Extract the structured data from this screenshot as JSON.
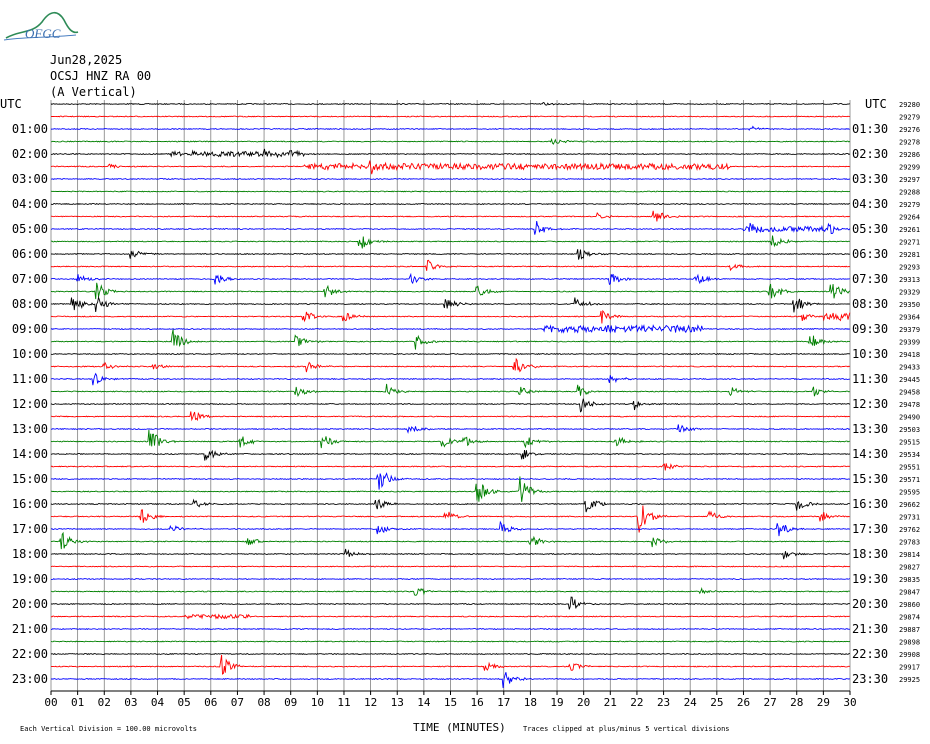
{
  "header": {
    "date": "Jun28,2025",
    "station": "OCSJ HNZ RA 00",
    "component": "(A Vertical)",
    "logo_text": "OFGC"
  },
  "footer": {
    "scale_note": "Each Vertical Division =  100.00 microvolts",
    "clip_note": "Traces clipped at plus/minus 5 vertical divisions"
  },
  "chart_data": {
    "type": "seismogram",
    "xlabel": "TIME (MINUTES)",
    "xlim": [
      0,
      30
    ],
    "x_ticks": [
      "00",
      "01",
      "02",
      "03",
      "04",
      "05",
      "06",
      "07",
      "08",
      "09",
      "10",
      "11",
      "12",
      "13",
      "14",
      "15",
      "16",
      "17",
      "18",
      "19",
      "20",
      "21",
      "22",
      "23",
      "24",
      "25",
      "26",
      "27",
      "28",
      "29",
      "30"
    ],
    "left_axis_title": "UTC",
    "right_axis_title": "UTC",
    "left_labels": [
      "01:00",
      "02:00",
      "03:00",
      "04:00",
      "05:00",
      "06:00",
      "07:00",
      "08:00",
      "09:00",
      "10:00",
      "11:00",
      "12:00",
      "13:00",
      "14:00",
      "15:00",
      "16:00",
      "17:00",
      "18:00",
      "19:00",
      "20:00",
      "21:00",
      "22:00",
      "23:00"
    ],
    "right_labels": [
      "01:30",
      "02:30",
      "03:30",
      "04:30",
      "05:30",
      "06:30",
      "07:30",
      "08:30",
      "09:30",
      "10:30",
      "11:30",
      "12:30",
      "13:30",
      "14:30",
      "15:30",
      "16:30",
      "17:30",
      "18:30",
      "19:30",
      "20:30",
      "21:30",
      "22:30",
      "23:30"
    ],
    "trace_colors": [
      "#000000",
      "#ff0000",
      "#0000ff",
      "#008000"
    ],
    "grid_color": "#808080",
    "trace_offsets": [
      "29280",
      "29279",
      "29276",
      "29278",
      "29286",
      "29299",
      "29297",
      "29288",
      "29279",
      "29264",
      "29261",
      "29271",
      "29281",
      "29293",
      "29313",
      "29329",
      "29350",
      "29364",
      "29379",
      "29399",
      "29418",
      "29433",
      "29445",
      "29458",
      "29478",
      "29490",
      "29503",
      "29515",
      "29534",
      "29551",
      "29571",
      "29595",
      "29662",
      "29731",
      "29762",
      "29783",
      "29814",
      "29827",
      "29835",
      "29847",
      "29860",
      "29874",
      "29887",
      "29898",
      "29908",
      "29917",
      "29925"
    ],
    "top_offset_prefix": "29",
    "events": [
      {
        "trace": 0,
        "minute": 18.5,
        "amp": 2
      },
      {
        "trace": 2,
        "minute": 26.2,
        "amp": 4
      },
      {
        "trace": 3,
        "minute": 18.8,
        "amp": 5
      },
      {
        "trace": 4,
        "minute": 5.0,
        "amp": 3
      },
      {
        "trace": 4,
        "minute": 8.0,
        "amp": 6
      },
      {
        "trace": 4,
        "minute": 9.0,
        "amp": 3
      },
      {
        "trace": 5,
        "minute": 2.2,
        "amp": 3
      },
      {
        "trace": 5,
        "minute": 12.0,
        "amp": 7
      },
      {
        "trace": 9,
        "minute": 20.5,
        "amp": 4
      },
      {
        "trace": 9,
        "minute": 22.6,
        "amp": 10
      },
      {
        "trace": 10,
        "minute": 18.2,
        "amp": 9
      },
      {
        "trace": 10,
        "minute": 26.2,
        "amp": 6
      },
      {
        "trace": 10,
        "minute": 29.2,
        "amp": 7
      },
      {
        "trace": 11,
        "minute": 11.6,
        "amp": 10
      },
      {
        "trace": 11,
        "minute": 27.1,
        "amp": 7
      },
      {
        "trace": 12,
        "minute": 3.0,
        "amp": 6
      },
      {
        "trace": 12,
        "minute": 19.8,
        "amp": 7
      },
      {
        "trace": 13,
        "minute": 14.1,
        "amp": 8
      },
      {
        "trace": 13,
        "minute": 25.5,
        "amp": 5
      },
      {
        "trace": 14,
        "minute": 1.0,
        "amp": 6
      },
      {
        "trace": 14,
        "minute": 6.2,
        "amp": 6
      },
      {
        "trace": 14,
        "minute": 13.5,
        "amp": 6
      },
      {
        "trace": 14,
        "minute": 21.0,
        "amp": 8
      },
      {
        "trace": 14,
        "minute": 24.2,
        "amp": 7
      },
      {
        "trace": 15,
        "minute": 1.7,
        "amp": 10
      },
      {
        "trace": 15,
        "minute": 10.3,
        "amp": 7
      },
      {
        "trace": 15,
        "minute": 16.0,
        "amp": 7
      },
      {
        "trace": 15,
        "minute": 27.0,
        "amp": 12
      },
      {
        "trace": 15,
        "minute": 29.3,
        "amp": 10
      },
      {
        "trace": 16,
        "minute": 0.8,
        "amp": 10
      },
      {
        "trace": 16,
        "minute": 1.7,
        "amp": 8
      },
      {
        "trace": 16,
        "minute": 14.8,
        "amp": 8
      },
      {
        "trace": 16,
        "minute": 19.7,
        "amp": 8
      },
      {
        "trace": 16,
        "minute": 27.9,
        "amp": 12
      },
      {
        "trace": 17,
        "minute": 9.5,
        "amp": 7
      },
      {
        "trace": 17,
        "minute": 11.0,
        "amp": 6
      },
      {
        "trace": 17,
        "minute": 20.7,
        "amp": 7
      },
      {
        "trace": 17,
        "minute": 28.2,
        "amp": 5
      },
      {
        "trace": 19,
        "minute": 4.6,
        "amp": 12
      },
      {
        "trace": 19,
        "minute": 9.2,
        "amp": 7
      },
      {
        "trace": 19,
        "minute": 13.7,
        "amp": 8
      },
      {
        "trace": 19,
        "minute": 28.5,
        "amp": 9
      },
      {
        "trace": 21,
        "minute": 2.0,
        "amp": 6
      },
      {
        "trace": 21,
        "minute": 3.8,
        "amp": 5
      },
      {
        "trace": 21,
        "minute": 9.6,
        "amp": 7
      },
      {
        "trace": 21,
        "minute": 17.4,
        "amp": 14
      },
      {
        "trace": 22,
        "minute": 1.6,
        "amp": 8
      },
      {
        "trace": 22,
        "minute": 21.0,
        "amp": 6
      },
      {
        "trace": 23,
        "minute": 9.2,
        "amp": 7
      },
      {
        "trace": 23,
        "minute": 12.6,
        "amp": 8
      },
      {
        "trace": 23,
        "minute": 17.6,
        "amp": 6
      },
      {
        "trace": 23,
        "minute": 19.8,
        "amp": 7
      },
      {
        "trace": 23,
        "minute": 25.5,
        "amp": 5
      },
      {
        "trace": 23,
        "minute": 28.6,
        "amp": 6
      },
      {
        "trace": 24,
        "minute": 19.9,
        "amp": 8
      },
      {
        "trace": 24,
        "minute": 21.9,
        "amp": 6
      },
      {
        "trace": 25,
        "minute": 5.3,
        "amp": 7
      },
      {
        "trace": 26,
        "minute": 13.4,
        "amp": 8
      },
      {
        "trace": 26,
        "minute": 23.6,
        "amp": 5
      },
      {
        "trace": 27,
        "minute": 3.7,
        "amp": 14
      },
      {
        "trace": 27,
        "minute": 7.1,
        "amp": 8
      },
      {
        "trace": 27,
        "minute": 10.2,
        "amp": 9
      },
      {
        "trace": 27,
        "minute": 14.7,
        "amp": 7
      },
      {
        "trace": 27,
        "minute": 15.5,
        "amp": 7
      },
      {
        "trace": 27,
        "minute": 17.8,
        "amp": 8
      },
      {
        "trace": 27,
        "minute": 21.2,
        "amp": 7
      },
      {
        "trace": 28,
        "minute": 5.8,
        "amp": 8
      },
      {
        "trace": 28,
        "minute": 17.7,
        "amp": 6
      },
      {
        "trace": 29,
        "minute": 23.0,
        "amp": 5
      },
      {
        "trace": 30,
        "minute": 12.3,
        "amp": 14
      },
      {
        "trace": 31,
        "minute": 16.0,
        "amp": 14
      },
      {
        "trace": 31,
        "minute": 17.6,
        "amp": 16
      },
      {
        "trace": 32,
        "minute": 5.4,
        "amp": 6
      },
      {
        "trace": 32,
        "minute": 12.2,
        "amp": 7
      },
      {
        "trace": 32,
        "minute": 20.1,
        "amp": 10
      },
      {
        "trace": 32,
        "minute": 28.0,
        "amp": 7
      },
      {
        "trace": 33,
        "minute": 3.4,
        "amp": 8
      },
      {
        "trace": 33,
        "minute": 14.8,
        "amp": 8
      },
      {
        "trace": 33,
        "minute": 22.1,
        "amp": 16
      },
      {
        "trace": 33,
        "minute": 24.7,
        "amp": 6
      },
      {
        "trace": 33,
        "minute": 28.9,
        "amp": 6
      },
      {
        "trace": 34,
        "minute": 4.5,
        "amp": 6
      },
      {
        "trace": 34,
        "minute": 12.3,
        "amp": 6
      },
      {
        "trace": 34,
        "minute": 16.9,
        "amp": 8
      },
      {
        "trace": 34,
        "minute": 27.3,
        "amp": 9
      },
      {
        "trace": 35,
        "minute": 0.4,
        "amp": 11
      },
      {
        "trace": 35,
        "minute": 7.4,
        "amp": 5
      },
      {
        "trace": 35,
        "minute": 18.0,
        "amp": 7
      },
      {
        "trace": 35,
        "minute": 22.6,
        "amp": 6
      },
      {
        "trace": 36,
        "minute": 11.1,
        "amp": 5
      },
      {
        "trace": 36,
        "minute": 27.5,
        "amp": 5
      },
      {
        "trace": 39,
        "minute": 13.7,
        "amp": 6
      },
      {
        "trace": 39,
        "minute": 24.4,
        "amp": 3
      },
      {
        "trace": 40,
        "minute": 19.5,
        "amp": 8
      },
      {
        "trace": 45,
        "minute": 6.4,
        "amp": 12
      },
      {
        "trace": 45,
        "minute": 16.3,
        "amp": 6
      },
      {
        "trace": 45,
        "minute": 19.5,
        "amp": 6
      },
      {
        "trace": 46,
        "minute": 17.0,
        "amp": 10
      }
    ],
    "noisy_segments": [
      {
        "trace": 4,
        "from": 4.5,
        "to": 9.5,
        "amp": 2.5
      },
      {
        "trace": 5,
        "from": 9.5,
        "to": 25.5,
        "amp": 3
      },
      {
        "trace": 10,
        "from": 26.0,
        "to": 29.2,
        "amp": 2.5
      },
      {
        "trace": 17,
        "from": 29.0,
        "to": 30.0,
        "amp": 4
      },
      {
        "trace": 18,
        "from": 18.5,
        "to": 24.5,
        "amp": 3.5
      },
      {
        "trace": 41,
        "from": 5.0,
        "to": 7.5,
        "amp": 2
      }
    ]
  }
}
